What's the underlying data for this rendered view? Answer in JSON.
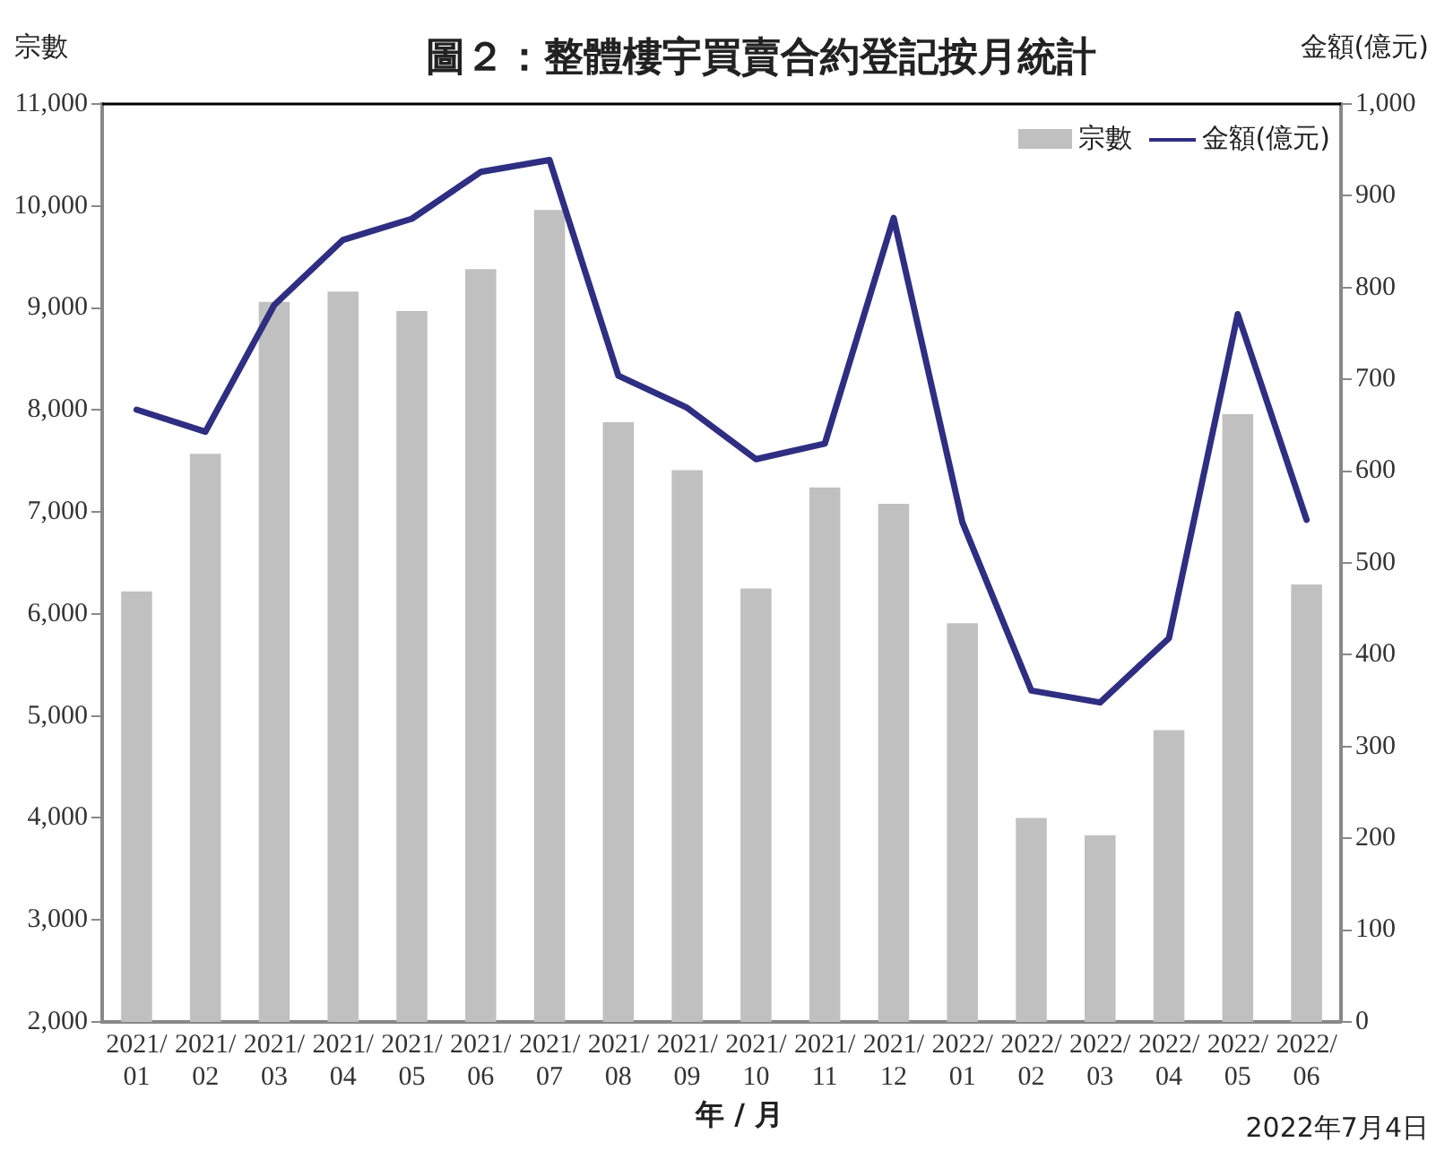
{
  "chart_data": {
    "type": "bar",
    "title": "圖２：整體樓宇買賣合約登記按月統計",
    "xlabel": "年 / 月",
    "ylabel": "宗數",
    "y2label": "金額(億元)",
    "categories": [
      "2021/01",
      "2021/02",
      "2021/03",
      "2021/04",
      "2021/05",
      "2021/06",
      "2021/07",
      "2021/08",
      "2021/09",
      "2021/10",
      "2021/11",
      "2021/12",
      "2022/01",
      "2022/02",
      "2022/03",
      "2022/04",
      "2022/05",
      "2022/06"
    ],
    "series": [
      {
        "name": "宗數",
        "color": "#c0c0c0",
        "values": [
          6220,
          7570,
          9060,
          9160,
          8970,
          9380,
          9960,
          7880,
          7410,
          6250,
          7240,
          7080,
          5910,
          4000,
          3830,
          4860,
          7960,
          6290
        ]
      },
      {
        "name": "金額(億元)",
        "type": "line",
        "axis": "y2",
        "color": "#2e2e82",
        "values": [
          667,
          643,
          781,
          852,
          875,
          926,
          939,
          704,
          669,
          613,
          630,
          876,
          544,
          361,
          348,
          418,
          771,
          547
        ]
      }
    ],
    "ylim": [
      2000,
      11000
    ],
    "yticks": [
      {
        "value": 2000,
        "label": "2,000"
      },
      {
        "value": 3000,
        "label": "3,000"
      },
      {
        "value": 4000,
        "label": "4,000"
      },
      {
        "value": 5000,
        "label": "5,000"
      },
      {
        "value": 6000,
        "label": "6,000"
      },
      {
        "value": 7000,
        "label": "7,000"
      },
      {
        "value": 8000,
        "label": "8,000"
      },
      {
        "value": 9000,
        "label": "9,000"
      },
      {
        "value": 10000,
        "label": "10,000"
      },
      {
        "value": 11000,
        "label": "11,000"
      }
    ],
    "y2lim": [
      0,
      1000
    ],
    "y2ticks": [
      0,
      100,
      200,
      300,
      400,
      500,
      600,
      700,
      800,
      900,
      {
        "value": 1000,
        "label": "1,000"
      }
    ],
    "legend": "top right",
    "marker": "none",
    "grid": false,
    "annotations": [
      "2022年7月4日"
    ]
  }
}
